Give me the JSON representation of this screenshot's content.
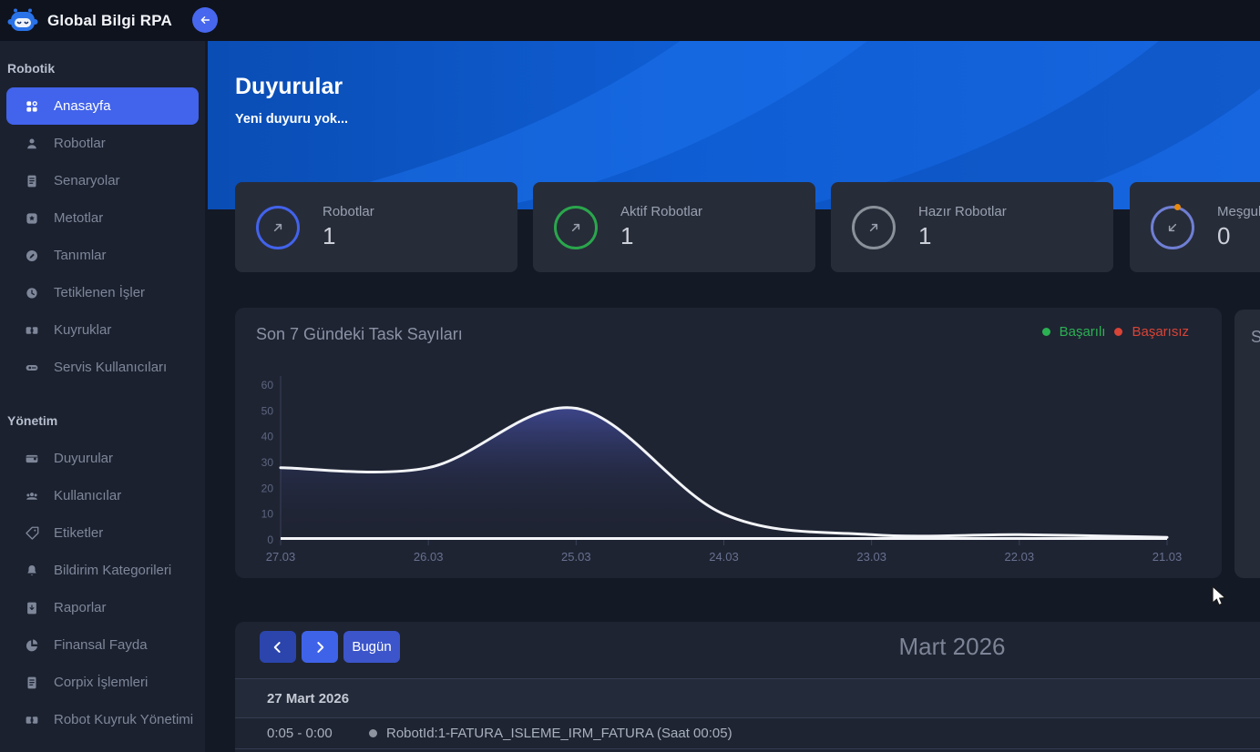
{
  "header": {
    "app_title": "Global Bilgi RPA"
  },
  "sidebar": {
    "sections": [
      {
        "label": "Robotik",
        "items": [
          {
            "label": "Anasayfa"
          },
          {
            "label": "Robotlar"
          },
          {
            "label": "Senaryolar"
          },
          {
            "label": "Metotlar"
          },
          {
            "label": "Tanımlar"
          },
          {
            "label": "Tetiklenen İşler"
          },
          {
            "label": "Kuyruklar"
          },
          {
            "label": "Servis Kullanıcıları"
          }
        ]
      },
      {
        "label": "Yönetim",
        "items": [
          {
            "label": "Duyurular"
          },
          {
            "label": "Kullanıcılar"
          },
          {
            "label": "Etiketler"
          },
          {
            "label": "Bildirim Kategorileri"
          },
          {
            "label": "Raporlar"
          },
          {
            "label": "Finansal Fayda"
          },
          {
            "label": "Corpix İşlemleri"
          },
          {
            "label": "Robot Kuyruk Yönetimi"
          }
        ]
      }
    ]
  },
  "banner": {
    "title": "Duyurular",
    "subtitle": "Yeni duyuru yok..."
  },
  "stat_cards": [
    {
      "label": "Robotlar",
      "value": "1",
      "ring_color": "#4263eb",
      "arrow": "up-right"
    },
    {
      "label": "Aktif Robotlar",
      "value": "1",
      "ring_color": "#2aa64c",
      "arrow": "up-right"
    },
    {
      "label": "Hazır Robotlar",
      "value": "1",
      "ring_color": "#8a9199",
      "arrow": "up-right"
    },
    {
      "label": "Meşgul Robotlar",
      "value": "0",
      "ring_color": "#6f7fd4",
      "arrow": "down-left",
      "badge_dot_color": "#e8890c"
    }
  ],
  "chart_data": {
    "type": "line",
    "title": "Son 7 Gündeki Task Sayıları",
    "categories": [
      "27.03",
      "26.03",
      "25.03",
      "24.03",
      "23.03",
      "22.03",
      "21.03"
    ],
    "series": [
      {
        "name": "Başarılı",
        "color": "#2bb152",
        "values": [
          28,
          28,
          51,
          10,
          2,
          2,
          1
        ]
      },
      {
        "name": "Başarısız",
        "color": "#d84436",
        "values": [
          0,
          0,
          0,
          0,
          0,
          0,
          0
        ]
      }
    ],
    "ylim": [
      0,
      60
    ],
    "yticks": [
      0,
      10,
      20,
      30,
      40,
      50,
      60
    ],
    "grid": false,
    "legend_position": "top-right",
    "line_render_color": "#f2f4f7",
    "area_fill_top": "#5661d2"
  },
  "side_card": {
    "title": "S"
  },
  "calendar": {
    "today_label": "Bugün",
    "title": "Mart 2026",
    "day_header": "27 Mart 2026",
    "events": [
      {
        "time": "0:05 - 0:00",
        "title": "RobotId:1-FATURA_ISLEME_IRM_FATURA (Saat 00:05)"
      }
    ]
  }
}
